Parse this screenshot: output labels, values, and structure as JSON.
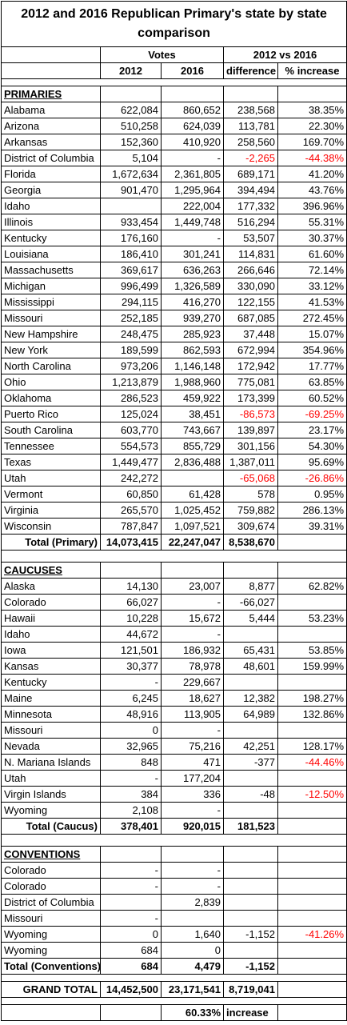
{
  "header": {
    "title": "2012 and 2016 Republican Primary's state by state comparison",
    "votes": "Votes",
    "comparison": "2012 vs 2016",
    "columns": [
      "2012",
      "2016",
      "difference",
      "% increase"
    ]
  },
  "negative_color": "#ff0000",
  "sections": [
    {
      "title": "PRIMARIES",
      "color_negative_difference": true,
      "rows": [
        [
          "Alabama",
          "622,084",
          "860,652",
          "238,568",
          "38.35%"
        ],
        [
          "Arizona",
          "510,258",
          "624,039",
          "113,781",
          "22.30%"
        ],
        [
          "Arkansas",
          "152,360",
          "410,920",
          "258,560",
          "169.70%"
        ],
        [
          "District of Columbia",
          "5,104",
          "-",
          "-2,265",
          "-44.38%"
        ],
        [
          "Florida",
          "1,672,634",
          "2,361,805",
          "689,171",
          "41.20%"
        ],
        [
          "Georgia",
          "901,470",
          "1,295,964",
          "394,494",
          "43.76%"
        ],
        [
          "Idaho",
          null,
          "222,004",
          "177,332",
          "396.96%"
        ],
        [
          "Illinois",
          "933,454",
          "1,449,748",
          "516,294",
          "55.31%"
        ],
        [
          "Kentucky",
          "176,160",
          "-",
          "53,507",
          "30.37%"
        ],
        [
          "Louisiana",
          "186,410",
          "301,241",
          "114,831",
          "61.60%"
        ],
        [
          "Massachusetts",
          "369,617",
          "636,263",
          "266,646",
          "72.14%"
        ],
        [
          "Michigan",
          "996,499",
          "1,326,589",
          "330,090",
          "33.12%"
        ],
        [
          "Mississippi",
          "294,115",
          "416,270",
          "122,155",
          "41.53%"
        ],
        [
          "Missouri",
          "252,185",
          "939,270",
          "687,085",
          "272.45%"
        ],
        [
          "New Hampshire",
          "248,475",
          "285,923",
          "37,448",
          "15.07%"
        ],
        [
          "New York",
          "189,599",
          "862,593",
          "672,994",
          "354.96%"
        ],
        [
          "North Carolina",
          "973,206",
          "1,146,148",
          "172,942",
          "17.77%"
        ],
        [
          "Ohio",
          "1,213,879",
          "1,988,960",
          "775,081",
          "63.85%"
        ],
        [
          "Oklahoma",
          "286,523",
          "459,922",
          "173,399",
          "60.52%"
        ],
        [
          "Puerto Rico",
          "125,024",
          "38,451",
          "-86,573",
          "-69.25%"
        ],
        [
          "South Carolina",
          "603,770",
          "743,667",
          "139,897",
          "23.17%"
        ],
        [
          "Tennessee",
          "554,573",
          "855,729",
          "301,156",
          "54.30%"
        ],
        [
          "Texas",
          "1,449,477",
          "2,836,488",
          "1,387,011",
          "95.69%"
        ],
        [
          "Utah",
          "242,272",
          null,
          "-65,068",
          "-26.86%"
        ],
        [
          "Vermont",
          "60,850",
          "61,428",
          "578",
          "0.95%"
        ],
        [
          "Virginia",
          "265,570",
          "1,025,452",
          "759,882",
          "286.13%"
        ],
        [
          "Wisconsin",
          "787,847",
          "1,097,521",
          "309,674",
          "39.31%"
        ]
      ],
      "total": [
        "Total (Primary)",
        "14,073,415",
        "22,247,047",
        "8,538,670"
      ]
    },
    {
      "title": "CAUCUSES",
      "color_negative_difference": false,
      "rows": [
        [
          "Alaska",
          "14,130",
          "23,007",
          "8,877",
          "62.82%"
        ],
        [
          "Colorado",
          "66,027",
          "-",
          "-66,027",
          null
        ],
        [
          "Hawaii",
          "10,228",
          "15,672",
          "5,444",
          "53.23%"
        ],
        [
          "Idaho",
          "44,672",
          "-",
          null,
          null
        ],
        [
          "Iowa",
          "121,501",
          "186,932",
          "65,431",
          "53.85%"
        ],
        [
          "Kansas",
          "30,377",
          "78,978",
          "48,601",
          "159.99%"
        ],
        [
          "Kentucky",
          "-",
          "229,667",
          null,
          null
        ],
        [
          "Maine",
          "6,245",
          "18,627",
          "12,382",
          "198.27%"
        ],
        [
          "Minnesota",
          "48,916",
          "113,905",
          "64,989",
          "132.86%"
        ],
        [
          "Missouri",
          "0",
          "-",
          null,
          null
        ],
        [
          "Nevada",
          "32,965",
          "75,216",
          "42,251",
          "128.17%"
        ],
        [
          "N. Mariana Islands",
          "848",
          "471",
          "-377",
          "-44.46%"
        ],
        [
          "Utah",
          "-",
          "177,204",
          null,
          null
        ],
        [
          "Virgin Islands",
          "384",
          "336",
          "-48",
          "-12.50%"
        ],
        [
          "Wyoming",
          "2,108",
          "-",
          null,
          null
        ]
      ],
      "total": [
        "Total (Caucus)",
        "378,401",
        "920,015",
        "181,523"
      ]
    },
    {
      "title": "CONVENTIONS",
      "color_negative_difference": false,
      "rows": [
        [
          "Colorado",
          "-",
          "-",
          null,
          null
        ],
        [
          "Colorado",
          "-",
          "-",
          null,
          null
        ],
        [
          "District of Columbia",
          null,
          "2,839",
          null,
          null
        ],
        [
          "Missouri",
          "-",
          null,
          null,
          null
        ],
        [
          "Wyoming",
          "0",
          "1,640",
          "-1,152",
          "-41.26%"
        ],
        [
          "Wyoming",
          "684",
          "0",
          null,
          null
        ]
      ],
      "total": [
        "Total (Conventions)",
        "684",
        "4,479",
        "-1,152"
      ]
    }
  ],
  "grand_total": [
    "GRAND TOTAL",
    "14,452,500",
    "23,171,541",
    "8,719,041"
  ],
  "summary": {
    "value": "60.33%",
    "label": "increase"
  }
}
